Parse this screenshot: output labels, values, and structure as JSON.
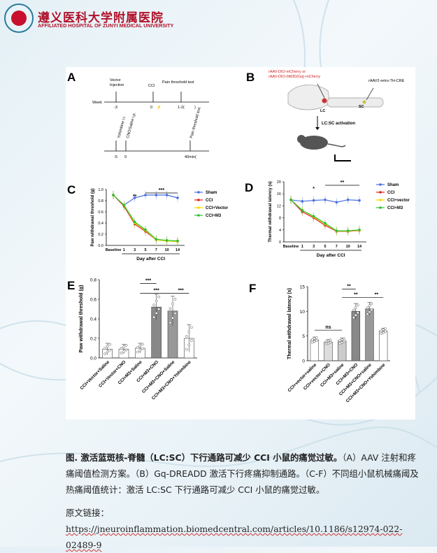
{
  "header": {
    "hospital_cn": "遵义医科大学附属医院",
    "hospital_en": "AFFILIATED HOSPITAL OF ZUNYI MEDICAL UNIVERSITY"
  },
  "panelA": {
    "label": "A",
    "row1": {
      "t1": "Vector",
      "t2": "Injection",
      "t3": "CCI",
      "t4": "Pain threshold test",
      "week": "Week",
      "k1": "-3",
      "k2": "0",
      "k3": "1-2(",
      "k3b": ")"
    },
    "row2": {
      "v1": "Yohimbine i.t.",
      "v2": "CNO/Saline i.p.",
      "v3": "Pain threshold test",
      "k1": "-5",
      "k2": "0",
      "k3": "40min("
    }
  },
  "panelB": {
    "label": "B",
    "virus1": "rAAV-DIO-mCherry or",
    "virus2": "rAAV-DIO-hM3D(Gq)-mCherry",
    "virus3": "rAAV2-retro-TH-CRE",
    "lc": "LC",
    "sc": "SC",
    "activation": "LC:SC activation"
  },
  "panelC": {
    "label": "C",
    "ylabel": "Paw withdrawal threshold (g)",
    "xlabel": "Day after CCI",
    "sig1": "**",
    "sig2": "***",
    "legend": [
      "Sham",
      "CCI",
      "CCI+Vector",
      "CCI+M3"
    ]
  },
  "panelD": {
    "label": "D",
    "ylabel": "Thermal withdrawal latency (s)",
    "xlabel": "Day after CCI",
    "sig1": "*",
    "sig2": "**",
    "legend": [
      "Sham",
      "CCI",
      "CCI+vector",
      "CCI+M3"
    ]
  },
  "panelE": {
    "label": "E",
    "ylabel": "Paw withdrawal threshold (g)",
    "sig": [
      "***",
      "***",
      "***"
    ]
  },
  "panelF": {
    "label": "F",
    "ylabel": "Thermal withdrawal latency (s)",
    "sig": [
      "ns",
      "**",
      "**",
      "**"
    ]
  },
  "caption": {
    "bold": "图. 激活蓝斑核-脊髓（LC:SC）下行通路可减少 CCI 小鼠的痛觉过敏。",
    "rest": "（A）AAV 注射和疼痛阈值检测方案。（B）Gq-DREADD 激活下行疼痛抑制通路。（C-F）不同组小鼠机械痛阈及热痛阈值统计：激活 LC:SC 下行通路可减少 CCI 小鼠的痛觉过敏。"
  },
  "source": {
    "prefix": "原文链接：",
    "url": "https://jneuroinflammation.biomedcentral.com/articles/10.1186/s12974-022-02489-9"
  },
  "chart_data": [
    {
      "type": "line",
      "id": "C",
      "x": [
        "Baseline",
        "1",
        "3",
        "5",
        "7",
        "10",
        "14"
      ],
      "ylabel": "Paw withdrawal threshold (g)",
      "xlabel": "Day after CCI",
      "ylim": [
        0,
        1.0
      ],
      "series": [
        {
          "name": "Sham",
          "color": "#4a6fe0",
          "values": [
            0.9,
            0.72,
            0.85,
            0.9,
            0.9,
            0.9,
            0.85
          ]
        },
        {
          "name": "CCI",
          "color": "#e02020",
          "values": [
            0.9,
            0.7,
            0.38,
            0.25,
            0.1,
            0.08,
            0.07
          ]
        },
        {
          "name": "CCI+Vector",
          "color": "#f0e000",
          "values": [
            0.9,
            0.72,
            0.4,
            0.27,
            0.1,
            0.08,
            0.07
          ]
        },
        {
          "name": "CCI+M3",
          "color": "#30c030",
          "values": [
            0.9,
            0.72,
            0.42,
            0.28,
            0.11,
            0.09,
            0.08
          ]
        }
      ]
    },
    {
      "type": "line",
      "id": "D",
      "x": [
        "Baseline",
        "1",
        "3",
        "5",
        "7",
        "10",
        "14"
      ],
      "ylabel": "Thermal withdrawal latency (s)",
      "xlabel": "Day after CCI",
      "ylim": [
        0,
        20
      ],
      "series": [
        {
          "name": "Sham",
          "color": "#4a6fe0",
          "values": [
            14,
            13.5,
            13.8,
            14,
            13.2,
            14,
            13.8
          ]
        },
        {
          "name": "CCI",
          "color": "#e02020",
          "values": [
            14,
            10,
            8,
            5.5,
            3.5,
            3.5,
            3.8
          ]
        },
        {
          "name": "CCI+vector",
          "color": "#f0e000",
          "values": [
            14,
            10.5,
            8.3,
            6,
            3.6,
            3.6,
            3.9
          ]
        },
        {
          "name": "CCI+M3",
          "color": "#30c030",
          "values": [
            14,
            10.5,
            8.5,
            6.2,
            3.7,
            3.7,
            4
          ]
        }
      ]
    },
    {
      "type": "bar",
      "id": "E",
      "categories": [
        "CCI+Vector+Saline",
        "CCI+Vector+CNO",
        "CCI+M3+Saline",
        "CCI+M3+CNO",
        "CCI+M3+CNO+Saline",
        "CCI+M3+CNO+Yohimbine"
      ],
      "values": [
        0.09,
        0.09,
        0.1,
        0.52,
        0.48,
        0.2
      ],
      "errors": [
        0.06,
        0.05,
        0.05,
        0.13,
        0.15,
        0.14
      ],
      "ylim": [
        0,
        0.8
      ]
    },
    {
      "type": "bar",
      "id": "F",
      "categories": [
        "CCI+vector+saline",
        "CCI+vector+CNO",
        "CCI+M3+saline",
        "CCI+M3+CNO",
        "CCI+M3+CNO+saline",
        "CCI+M3+CNO+Yohimbine"
      ],
      "values": [
        4.2,
        3.8,
        4.0,
        10.0,
        10.5,
        6.0
      ],
      "errors": [
        0.6,
        0.5,
        0.6,
        1.6,
        1.3,
        0.6
      ],
      "ylim": [
        0,
        15
      ]
    }
  ]
}
